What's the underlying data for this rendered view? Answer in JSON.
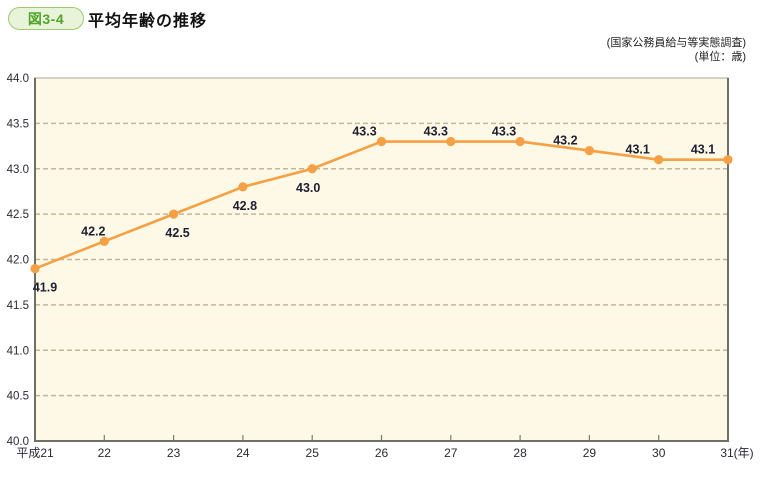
{
  "header": {
    "figure_label": "図3-4",
    "title": "平均年齢の推移"
  },
  "source_notes": {
    "line1": "(国家公務員給与等実態調査)",
    "line2": "(単位：歳)"
  },
  "chart_data": {
    "type": "line",
    "title": "平均年齢の推移",
    "unit": "歳",
    "x_axis_suffix": "(年)",
    "x_labels": [
      "平成21",
      "22",
      "23",
      "24",
      "25",
      "26",
      "27",
      "28",
      "29",
      "30",
      "31(年)"
    ],
    "values": [
      41.9,
      42.2,
      42.5,
      42.8,
      43.0,
      43.3,
      43.3,
      43.3,
      43.2,
      43.1,
      43.1
    ],
    "point_labels": [
      "41.9",
      "42.2",
      "42.5",
      "42.8",
      "43.0",
      "43.3",
      "43.3",
      "43.3",
      "43.2",
      "43.1",
      "43.1"
    ],
    "ylim": [
      40.0,
      44.0
    ],
    "y_tick_step": 0.5,
    "grid": "horizontal-dashed",
    "legend": "none",
    "label_positions": [
      "below",
      "above",
      "below",
      "below",
      "below",
      "above",
      "above",
      "above",
      "above",
      "above",
      "above"
    ],
    "label_dx": [
      10,
      -11,
      4,
      2,
      -4,
      -17,
      -15,
      -16,
      -24,
      -21,
      -25
    ],
    "colors": {
      "line": "#f5a045",
      "marker": "#f5a045",
      "plot_background": "#fdf9e6",
      "gridline": "#c2b79b",
      "axis_border_dark": "#6f6f68",
      "axis_border_light": "#a8a89e",
      "tick": "#7a7a72",
      "data_label": "#1f1f33",
      "axis_label": "#2a2a33",
      "badge_green": "#50a52c"
    }
  }
}
